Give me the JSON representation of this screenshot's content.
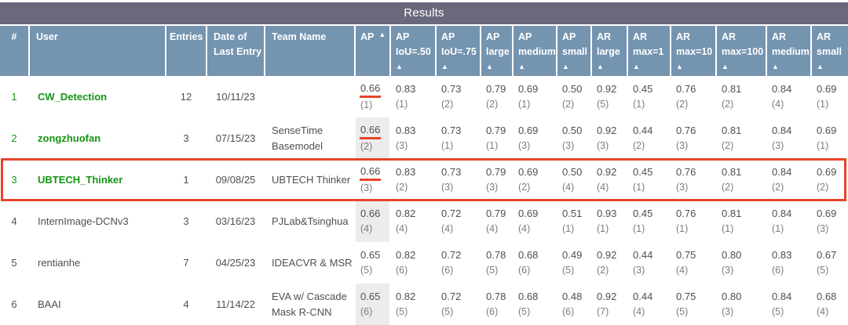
{
  "title": "Results",
  "colors": {
    "title_bar": "#69697b",
    "header_bg": "#7494b0",
    "user_green": "#149414",
    "text_gray": "#4f4f4f",
    "rank_gray": "#7d7d7d",
    "shaded_cell": "#ececec",
    "annotation_red": "#e8432a"
  },
  "table": {
    "sort_arrow": "▲",
    "columns": [
      {
        "id": "rank",
        "lines": [
          "#"
        ]
      },
      {
        "id": "user",
        "lines": [
          "User"
        ]
      },
      {
        "id": "entries",
        "lines": [
          "Entries"
        ]
      },
      {
        "id": "date",
        "lines": [
          "Date of Last Entry"
        ]
      },
      {
        "id": "team",
        "lines": [
          "Team Name"
        ]
      },
      {
        "id": "ap",
        "lines": [
          "AP"
        ],
        "arrow": "inline"
      },
      {
        "id": "ap_iou_50",
        "lines": [
          "AP",
          "IoU=.50"
        ],
        "arrow": "stacked"
      },
      {
        "id": "ap_iou_75",
        "lines": [
          "AP",
          "IoU=.75"
        ],
        "arrow": "stacked"
      },
      {
        "id": "ap_large",
        "lines": [
          "AP",
          "large"
        ],
        "arrow": "stacked"
      },
      {
        "id": "ap_medium",
        "lines": [
          "AP",
          "medium"
        ],
        "arrow": "stacked"
      },
      {
        "id": "ap_small",
        "lines": [
          "AP",
          "small"
        ],
        "arrow": "stacked"
      },
      {
        "id": "ar_large",
        "lines": [
          "AR",
          "large"
        ],
        "arrow": "stacked"
      },
      {
        "id": "ar_max_1",
        "lines": [
          "AR",
          "max=1"
        ],
        "arrow": "stacked"
      },
      {
        "id": "ar_max_10",
        "lines": [
          "AR",
          "max=10"
        ],
        "arrow": "stacked"
      },
      {
        "id": "ar_max_100",
        "lines": [
          "AR",
          "max=100"
        ],
        "arrow": "stacked"
      },
      {
        "id": "ar_medium",
        "lines": [
          "AR",
          "medium"
        ],
        "arrow": "stacked"
      },
      {
        "id": "ar_small",
        "lines": [
          "AR",
          "small"
        ],
        "arrow": "stacked"
      }
    ],
    "rows": [
      {
        "rank": "1",
        "user": "CW_Detection",
        "entries": "12",
        "date": "10/11/23",
        "team": "",
        "highlighted": true,
        "ap_shaded": false,
        "ap_underlined": true,
        "outlined": false,
        "metrics": [
          {
            "value": "0.66",
            "rank": "(1)"
          },
          {
            "value": "0.83",
            "rank": "(1)"
          },
          {
            "value": "0.73",
            "rank": "(2)"
          },
          {
            "value": "0.79",
            "rank": "(2)"
          },
          {
            "value": "0.69",
            "rank": "(1)"
          },
          {
            "value": "0.50",
            "rank": "(2)"
          },
          {
            "value": "0.92",
            "rank": "(5)"
          },
          {
            "value": "0.45",
            "rank": "(1)"
          },
          {
            "value": "0.76",
            "rank": "(2)"
          },
          {
            "value": "0.81",
            "rank": "(2)"
          },
          {
            "value": "0.84",
            "rank": "(4)"
          },
          {
            "value": "0.69",
            "rank": "(1)"
          }
        ]
      },
      {
        "rank": "2",
        "user": "zongzhuofan",
        "entries": "3",
        "date": "07/15/23",
        "team": "SenseTime Basemodel",
        "highlighted": true,
        "ap_shaded": true,
        "ap_underlined": true,
        "outlined": false,
        "metrics": [
          {
            "value": "0.66",
            "rank": "(2)"
          },
          {
            "value": "0.83",
            "rank": "(3)"
          },
          {
            "value": "0.73",
            "rank": "(1)"
          },
          {
            "value": "0.79",
            "rank": "(1)"
          },
          {
            "value": "0.69",
            "rank": "(3)"
          },
          {
            "value": "0.50",
            "rank": "(3)"
          },
          {
            "value": "0.92",
            "rank": "(3)"
          },
          {
            "value": "0.44",
            "rank": "(2)"
          },
          {
            "value": "0.76",
            "rank": "(3)"
          },
          {
            "value": "0.81",
            "rank": "(2)"
          },
          {
            "value": "0.84",
            "rank": "(3)"
          },
          {
            "value": "0.69",
            "rank": "(1)"
          }
        ]
      },
      {
        "rank": "3",
        "user": "UBTECH_Thinker",
        "entries": "1",
        "date": "09/08/25",
        "team": "UBTECH Thinker",
        "highlighted": true,
        "ap_shaded": false,
        "ap_underlined": true,
        "outlined": true,
        "metrics": [
          {
            "value": "0.66",
            "rank": "(3)"
          },
          {
            "value": "0.83",
            "rank": "(2)"
          },
          {
            "value": "0.73",
            "rank": "(3)"
          },
          {
            "value": "0.79",
            "rank": "(3)"
          },
          {
            "value": "0.69",
            "rank": "(2)"
          },
          {
            "value": "0.50",
            "rank": "(4)"
          },
          {
            "value": "0.92",
            "rank": "(4)"
          },
          {
            "value": "0.45",
            "rank": "(1)"
          },
          {
            "value": "0.76",
            "rank": "(3)"
          },
          {
            "value": "0.81",
            "rank": "(2)"
          },
          {
            "value": "0.84",
            "rank": "(2)"
          },
          {
            "value": "0.69",
            "rank": "(2)"
          }
        ]
      },
      {
        "rank": "4",
        "user": "InternImage-DCNv3",
        "entries": "3",
        "date": "03/16/23",
        "team": "PJLab&Tsinghua",
        "highlighted": false,
        "ap_shaded": true,
        "ap_underlined": false,
        "outlined": false,
        "metrics": [
          {
            "value": "0.66",
            "rank": "(4)"
          },
          {
            "value": "0.82",
            "rank": "(4)"
          },
          {
            "value": "0.72",
            "rank": "(4)"
          },
          {
            "value": "0.79",
            "rank": "(4)"
          },
          {
            "value": "0.69",
            "rank": "(4)"
          },
          {
            "value": "0.51",
            "rank": "(1)"
          },
          {
            "value": "0.93",
            "rank": "(1)"
          },
          {
            "value": "0.45",
            "rank": "(1)"
          },
          {
            "value": "0.76",
            "rank": "(1)"
          },
          {
            "value": "0.81",
            "rank": "(1)"
          },
          {
            "value": "0.84",
            "rank": "(1)"
          },
          {
            "value": "0.69",
            "rank": "(3)"
          }
        ]
      },
      {
        "rank": "5",
        "user": "rentianhe",
        "entries": "7",
        "date": "04/25/23",
        "team": "IDEACVR & MSR",
        "highlighted": false,
        "ap_shaded": false,
        "ap_underlined": false,
        "outlined": false,
        "metrics": [
          {
            "value": "0.65",
            "rank": "(5)"
          },
          {
            "value": "0.82",
            "rank": "(6)"
          },
          {
            "value": "0.72",
            "rank": "(6)"
          },
          {
            "value": "0.78",
            "rank": "(5)"
          },
          {
            "value": "0.68",
            "rank": "(6)"
          },
          {
            "value": "0.49",
            "rank": "(5)"
          },
          {
            "value": "0.92",
            "rank": "(2)"
          },
          {
            "value": "0.44",
            "rank": "(3)"
          },
          {
            "value": "0.75",
            "rank": "(4)"
          },
          {
            "value": "0.80",
            "rank": "(3)"
          },
          {
            "value": "0.83",
            "rank": "(6)"
          },
          {
            "value": "0.67",
            "rank": "(5)"
          }
        ]
      },
      {
        "rank": "6",
        "user": "BAAI",
        "entries": "4",
        "date": "11/14/22",
        "team": "EVA w/ Cascade Mask R-CNN",
        "highlighted": false,
        "ap_shaded": true,
        "ap_underlined": false,
        "outlined": false,
        "metrics": [
          {
            "value": "0.65",
            "rank": "(6)"
          },
          {
            "value": "0.82",
            "rank": "(5)"
          },
          {
            "value": "0.72",
            "rank": "(5)"
          },
          {
            "value": "0.78",
            "rank": "(6)"
          },
          {
            "value": "0.68",
            "rank": "(5)"
          },
          {
            "value": "0.48",
            "rank": "(6)"
          },
          {
            "value": "0.92",
            "rank": "(7)"
          },
          {
            "value": "0.44",
            "rank": "(4)"
          },
          {
            "value": "0.75",
            "rank": "(5)"
          },
          {
            "value": "0.80",
            "rank": "(3)"
          },
          {
            "value": "0.84",
            "rank": "(5)"
          },
          {
            "value": "0.68",
            "rank": "(4)"
          }
        ]
      }
    ]
  }
}
